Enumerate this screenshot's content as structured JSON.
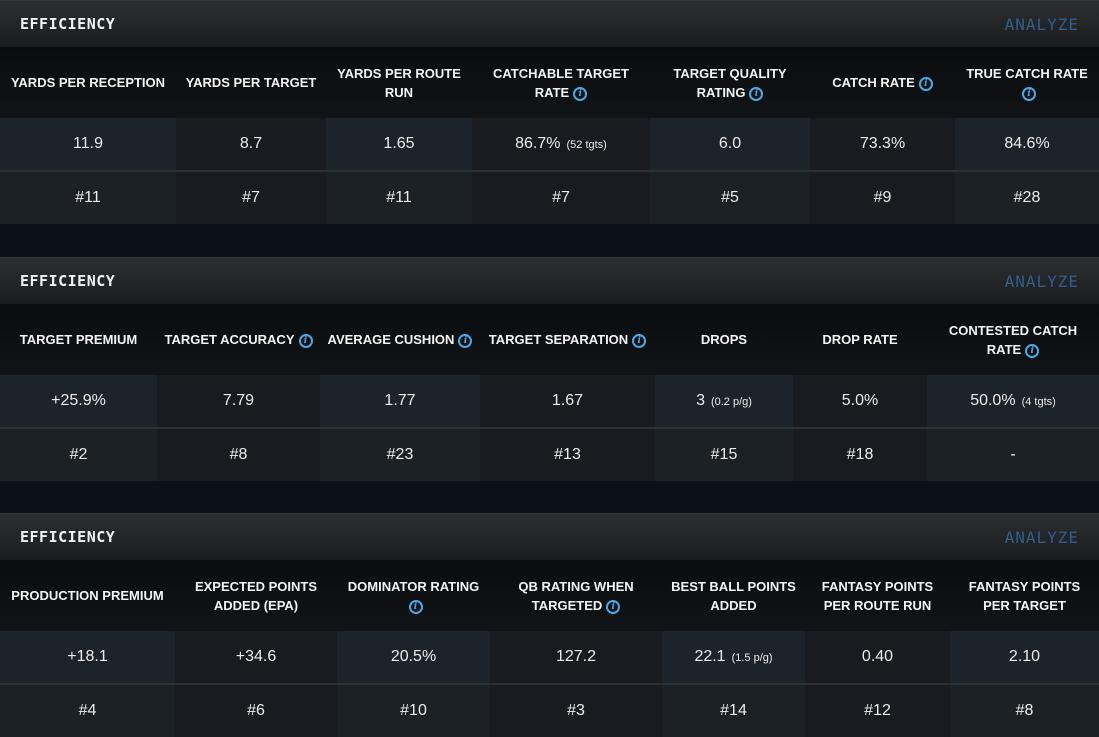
{
  "sections": [
    {
      "title": "EFFICIENCY",
      "analyze": "ANALYZE",
      "columns": [
        {
          "label": "YARDS PER RECEPTION",
          "info": false,
          "value": "11.9",
          "sub": "",
          "rank": "#11"
        },
        {
          "label": "YARDS PER TARGET",
          "info": false,
          "value": "8.7",
          "sub": "",
          "rank": "#7"
        },
        {
          "label": "YARDS PER ROUTE RUN",
          "info": false,
          "value": "1.65",
          "sub": "",
          "rank": "#11"
        },
        {
          "label": "CATCHABLE TARGET RATE",
          "info": true,
          "value": "86.7%",
          "sub": "(52 tgts)",
          "rank": "#7"
        },
        {
          "label": "TARGET QUALITY RATING",
          "info": true,
          "value": "6.0",
          "sub": "",
          "rank": "#5"
        },
        {
          "label": "CATCH RATE",
          "info": true,
          "value": "73.3%",
          "sub": "",
          "rank": "#9"
        },
        {
          "label": "TRUE CATCH RATE",
          "info": true,
          "value": "84.6%",
          "sub": "",
          "rank": "#28"
        }
      ]
    },
    {
      "title": "EFFICIENCY",
      "analyze": "ANALYZE",
      "columns": [
        {
          "label": "TARGET PREMIUM",
          "info": false,
          "value": "+25.9%",
          "sub": "",
          "rank": "#2"
        },
        {
          "label": "TARGET ACCURACY",
          "info": true,
          "value": "7.79",
          "sub": "",
          "rank": "#8"
        },
        {
          "label": "AVERAGE CUSHION",
          "info": true,
          "value": "1.77",
          "sub": "",
          "rank": "#23"
        },
        {
          "label": "TARGET SEPARATION",
          "info": true,
          "value": "1.67",
          "sub": "",
          "rank": "#13"
        },
        {
          "label": "DROPS",
          "info": false,
          "value": "3",
          "sub": "(0.2 p/g)",
          "rank": "#15"
        },
        {
          "label": "DROP RATE",
          "info": false,
          "value": "5.0%",
          "sub": "",
          "rank": "#18"
        },
        {
          "label": "CONTESTED CATCH RATE",
          "info": true,
          "value": "50.0%",
          "sub": "(4 tgts)",
          "rank": "-"
        }
      ]
    },
    {
      "title": "EFFICIENCY",
      "analyze": "ANALYZE",
      "columns": [
        {
          "label": "PRODUCTION PREMIUM",
          "info": false,
          "value": "+18.1",
          "sub": "",
          "rank": "#4"
        },
        {
          "label": "EXPECTED POINTS ADDED (EPA)",
          "info": false,
          "value": "+34.6",
          "sub": "",
          "rank": "#6"
        },
        {
          "label": "DOMINATOR RATING",
          "info": true,
          "value": "20.5%",
          "sub": "",
          "rank": "#10"
        },
        {
          "label": "QB RATING WHEN TARGETED",
          "info": true,
          "value": "127.2",
          "sub": "",
          "rank": "#3"
        },
        {
          "label": "BEST BALL POINTS ADDED",
          "info": false,
          "value": "22.1",
          "sub": "(1.5 p/g)",
          "rank": "#14"
        },
        {
          "label": "FANTASY POINTS PER ROUTE RUN",
          "info": false,
          "value": "0.40",
          "sub": "",
          "rank": "#12"
        },
        {
          "label": "FANTASY POINTS PER TARGET",
          "info": false,
          "value": "2.10",
          "sub": "",
          "rank": "#8"
        }
      ]
    }
  ],
  "colors": {
    "analyze": "#2d5f90",
    "info": "#4aa8e8"
  },
  "icons": {
    "info": "info-circle-icon"
  }
}
